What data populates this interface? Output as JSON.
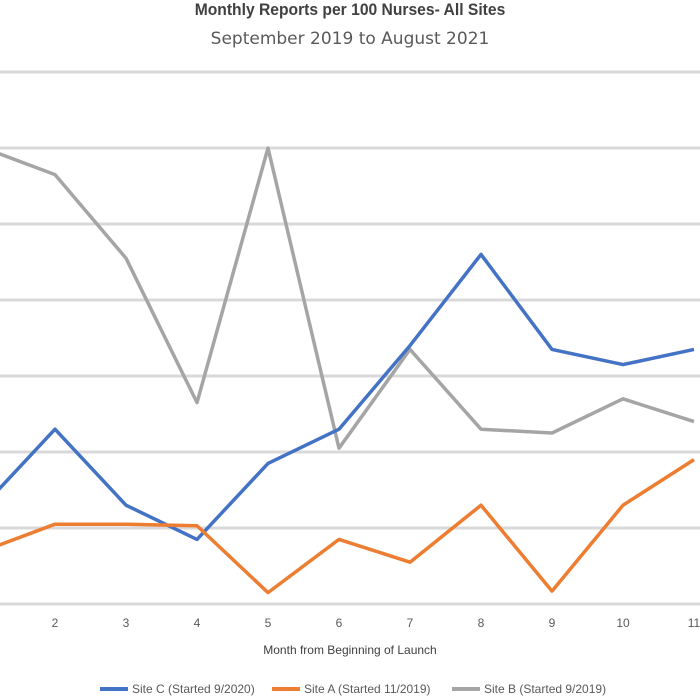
{
  "chart_data": {
    "type": "line",
    "title": "Monthly Reports per 100 Nurses- All Sites",
    "subtitle": "September 2019 to August 2021",
    "xlabel": "Month from Beginning of Launch",
    "ylabel": "",
    "x": [
      1,
      2,
      3,
      4,
      5,
      6,
      7,
      8,
      9,
      10,
      11
    ],
    "x_tick_labels": [
      "2",
      "3",
      "4",
      "5",
      "6",
      "7",
      "8",
      "9",
      "10",
      "11"
    ],
    "ylim": [
      0,
      7
    ],
    "grid": true,
    "legend_position": "bottom",
    "series": [
      {
        "name": "Site C (Started 9/2020)",
        "color": "#4472C4",
        "values": [
          1.3,
          2.3,
          1.3,
          0.85,
          1.85,
          2.3,
          3.4,
          4.6,
          3.35,
          3.15,
          3.35
        ]
      },
      {
        "name": "Site A (Started 11/2019)",
        "color": "#ED7D31",
        "values": [
          0.7,
          1.05,
          1.05,
          1.03,
          0.15,
          0.85,
          0.55,
          1.3,
          0.17,
          1.3,
          1.9
        ]
      },
      {
        "name": "Site B (Started 9/2019)",
        "color": "#A5A5A5",
        "values": [
          6.0,
          5.65,
          4.55,
          2.65,
          6.0,
          2.05,
          3.35,
          2.3,
          2.25,
          2.7,
          2.4
        ]
      }
    ]
  }
}
